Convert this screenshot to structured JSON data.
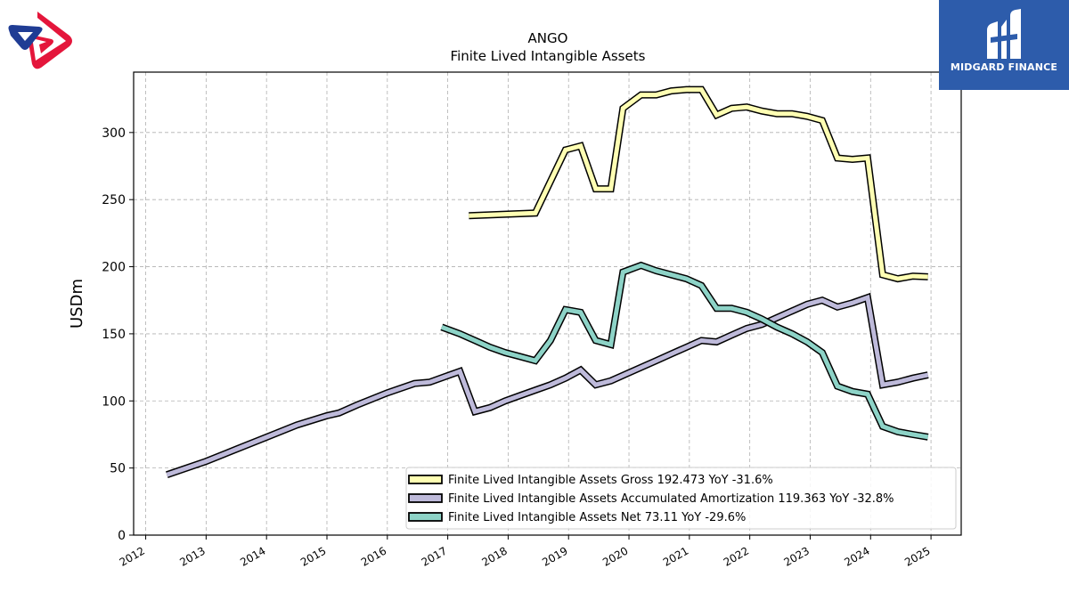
{
  "branding": {
    "company_name": "MIDGARD FINANCE",
    "brand_color": "#2d5cab",
    "left_logo": "red-blue-ribbon-logo"
  },
  "chart_data": {
    "type": "line",
    "title": "ANGO",
    "subtitle": "Finite Lived Intangible Assets",
    "xlabel": "",
    "ylabel": "USDm",
    "xlim": [
      2011.8,
      2025.5
    ],
    "ylim": [
      0,
      345
    ],
    "x_ticks": [
      "2012",
      "2013",
      "2014",
      "2015",
      "2016",
      "2017",
      "2018",
      "2019",
      "2020",
      "2021",
      "2022",
      "2023",
      "2024",
      "2025"
    ],
    "y_ticks": [
      0,
      50,
      100,
      150,
      200,
      250,
      300
    ],
    "grid": true,
    "legend_position": "lower-right",
    "series": [
      {
        "name": "Finite Lived Intangible Assets Gross",
        "legend_label": "Finite Lived Intangible Assets Gross  192.473 YoY -31.6%",
        "color": "#ffffb3",
        "x": [
          2017.35,
          2018.45,
          2018.95,
          2019.2,
          2019.45,
          2019.7,
          2019.9,
          2020.2,
          2020.45,
          2020.7,
          2020.95,
          2021.2,
          2021.45,
          2021.7,
          2021.95,
          2022.2,
          2022.45,
          2022.7,
          2022.95,
          2023.2,
          2023.45,
          2023.7,
          2023.95,
          2024.2,
          2024.45,
          2024.7,
          2024.95
        ],
        "y": [
          238,
          240,
          287,
          290,
          258,
          258,
          318,
          328,
          328,
          331,
          332,
          332,
          313,
          318,
          319,
          316,
          314,
          314,
          312,
          309,
          281,
          280,
          281,
          194,
          191,
          193,
          192.473
        ]
      },
      {
        "name": "Finite Lived Intangible Assets Accumulated Amortization",
        "legend_label": "Finite Lived Intangible Assets Accumulated Amortization  119.363 YoY -32.8%",
        "color": "#bebada",
        "x": [
          2012.35,
          2013.0,
          2013.5,
          2014.0,
          2014.5,
          2015.0,
          2015.2,
          2015.5,
          2016.0,
          2016.45,
          2016.7,
          2016.95,
          2017.2,
          2017.45,
          2017.7,
          2017.95,
          2018.2,
          2018.45,
          2018.7,
          2018.95,
          2019.2,
          2019.45,
          2019.7,
          2019.95,
          2020.2,
          2020.45,
          2020.7,
          2020.95,
          2021.2,
          2021.45,
          2021.7,
          2021.95,
          2022.2,
          2022.45,
          2022.7,
          2022.95,
          2023.2,
          2023.45,
          2023.7,
          2023.95,
          2024.2,
          2024.45,
          2024.7,
          2024.95
        ],
        "y": [
          45,
          55,
          64,
          73,
          82,
          89,
          91,
          97,
          106,
          113,
          114,
          118,
          122,
          92,
          95,
          100,
          104,
          108,
          112,
          117,
          123,
          112,
          115,
          120,
          125,
          130,
          135,
          140,
          145,
          144,
          149,
          154,
          157,
          162,
          167,
          172,
          175,
          170,
          173,
          177,
          112,
          114,
          117,
          119.363
        ]
      },
      {
        "name": "Finite Lived Intangible Assets Net",
        "legend_label": "Finite Lived Intangible Assets Net  73.11 YoY -29.6%",
        "color": "#8dd3c7",
        "x": [
          2016.9,
          2017.2,
          2017.45,
          2017.7,
          2017.95,
          2018.2,
          2018.45,
          2018.7,
          2018.95,
          2019.2,
          2019.45,
          2019.7,
          2019.9,
          2020.2,
          2020.45,
          2020.7,
          2020.95,
          2021.2,
          2021.45,
          2021.7,
          2021.95,
          2022.2,
          2022.45,
          2022.7,
          2022.95,
          2023.2,
          2023.45,
          2023.7,
          2023.95,
          2024.2,
          2024.45,
          2024.7,
          2024.95
        ],
        "y": [
          155,
          150,
          145,
          140,
          136,
          133,
          130,
          145,
          168,
          166,
          145,
          142,
          196,
          201,
          197,
          194,
          191,
          186,
          169,
          169,
          166,
          161,
          155,
          150,
          144,
          136,
          111,
          107,
          105,
          81,
          77,
          75,
          73.11
        ]
      }
    ]
  }
}
